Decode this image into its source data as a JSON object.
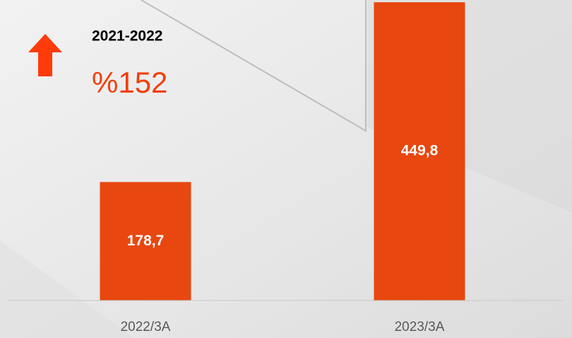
{
  "chart_data": {
    "type": "bar",
    "annotations": [
      "2021-2022",
      "%152"
    ],
    "categories": [
      "2022/3A",
      "2023/3A"
    ],
    "values": [
      178.7,
      449.8
    ],
    "value_labels": [
      "178,7",
      "449,8"
    ],
    "color": "#e8470f",
    "ylim": [
      0,
      450
    ]
  }
}
